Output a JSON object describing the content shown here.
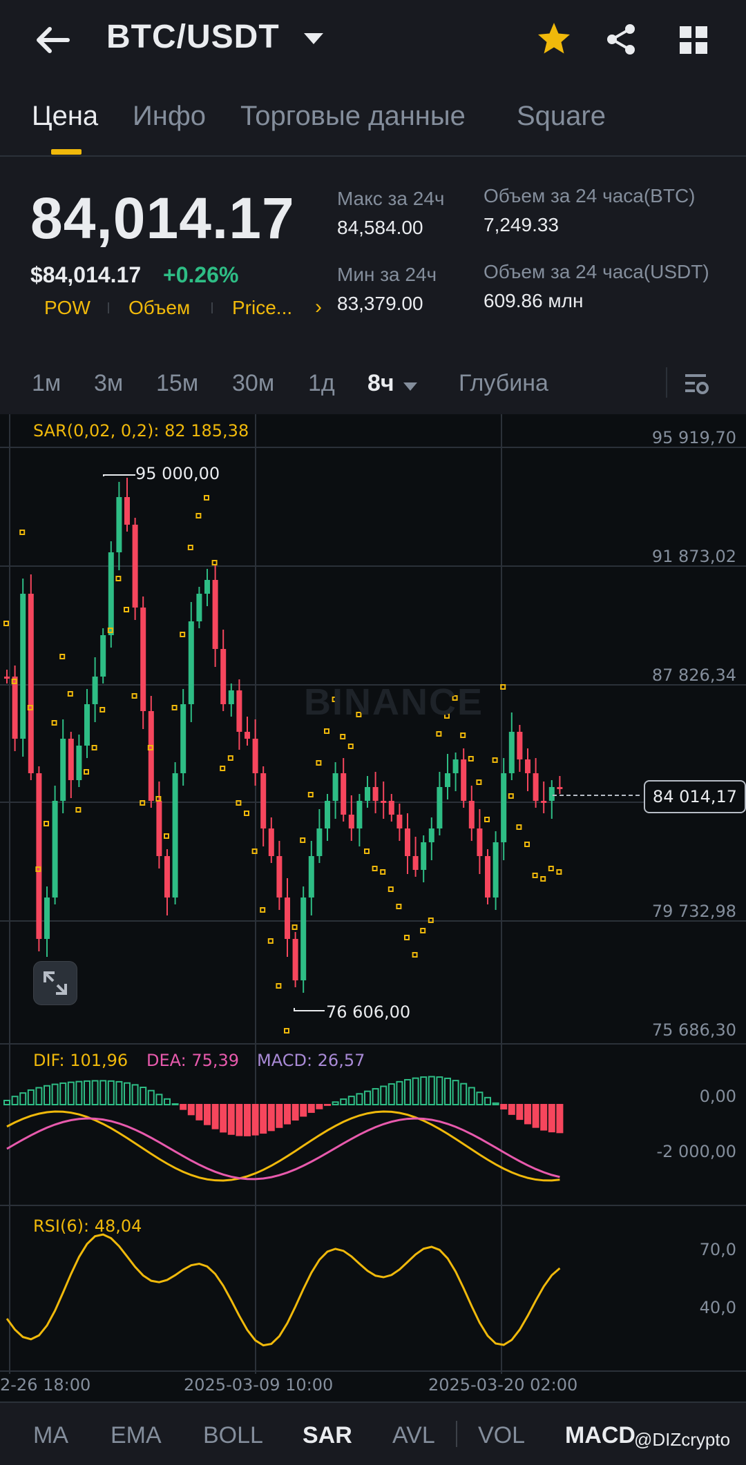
{
  "header": {
    "pair": "BTC/USDT"
  },
  "tabs": [
    {
      "label": "Цена",
      "active": true
    },
    {
      "label": "Инфо",
      "active": false
    },
    {
      "label": "Торговые данные",
      "active": false
    },
    {
      "label": "Square",
      "active": false
    }
  ],
  "price": {
    "last": "84,014.17",
    "usd": "$84,014.17",
    "change": "+0.26%",
    "tags": [
      "POW",
      "Объем",
      "Price..."
    ]
  },
  "stats": {
    "high_label": "Макс за 24ч",
    "high_value": "84,584.00",
    "low_label": "Мин за 24ч",
    "low_value": "83,379.00",
    "vol_btc_label": "Объем за 24 часа(BTC)",
    "vol_btc_value": "7,249.33",
    "vol_usdt_label": "Объем за 24 часа(USDT)",
    "vol_usdt_value": "609.86 млн"
  },
  "timeframes": {
    "items": [
      "1м",
      "3м",
      "15м",
      "30м",
      "1д",
      "8ч"
    ],
    "active": "8ч",
    "depth": "Глубина"
  },
  "chart": {
    "sar_label": "SAR(0,02, 0,2): 82 185,38",
    "price_axis": [
      "95 919,70",
      "91 873,02",
      "87 826,34",
      "79 732,98",
      "75 686,30"
    ],
    "current_price": "84 014,17",
    "max_marker": "95 000,00",
    "min_marker": "76 606,00",
    "watermark": "BINANCE",
    "macd": {
      "dif": "DIF: 101,96",
      "dea": "DEA: 75,39",
      "macd": "MACD: 26,57",
      "axis": [
        "0,00",
        "-2 000,00"
      ]
    },
    "rsi": {
      "label": "RSI(6): 48,04",
      "axis": [
        "70,0",
        "40,0"
      ]
    },
    "time_labels": [
      "2-26 18:00",
      "2025-03-09 10:00",
      "2025-03-20 02:00"
    ]
  },
  "indicators": [
    "MA",
    "EMA",
    "BOLL",
    "SAR",
    "AVL",
    "VOL",
    "MACD"
  ],
  "active_indicator": "SAR",
  "credit": "@DIZcrypto",
  "colors": {
    "up": "#2ebd85",
    "down": "#f6465d",
    "accent": "#f0b90b",
    "bg": "#181a20",
    "chart_bg": "#0b0e11"
  }
}
